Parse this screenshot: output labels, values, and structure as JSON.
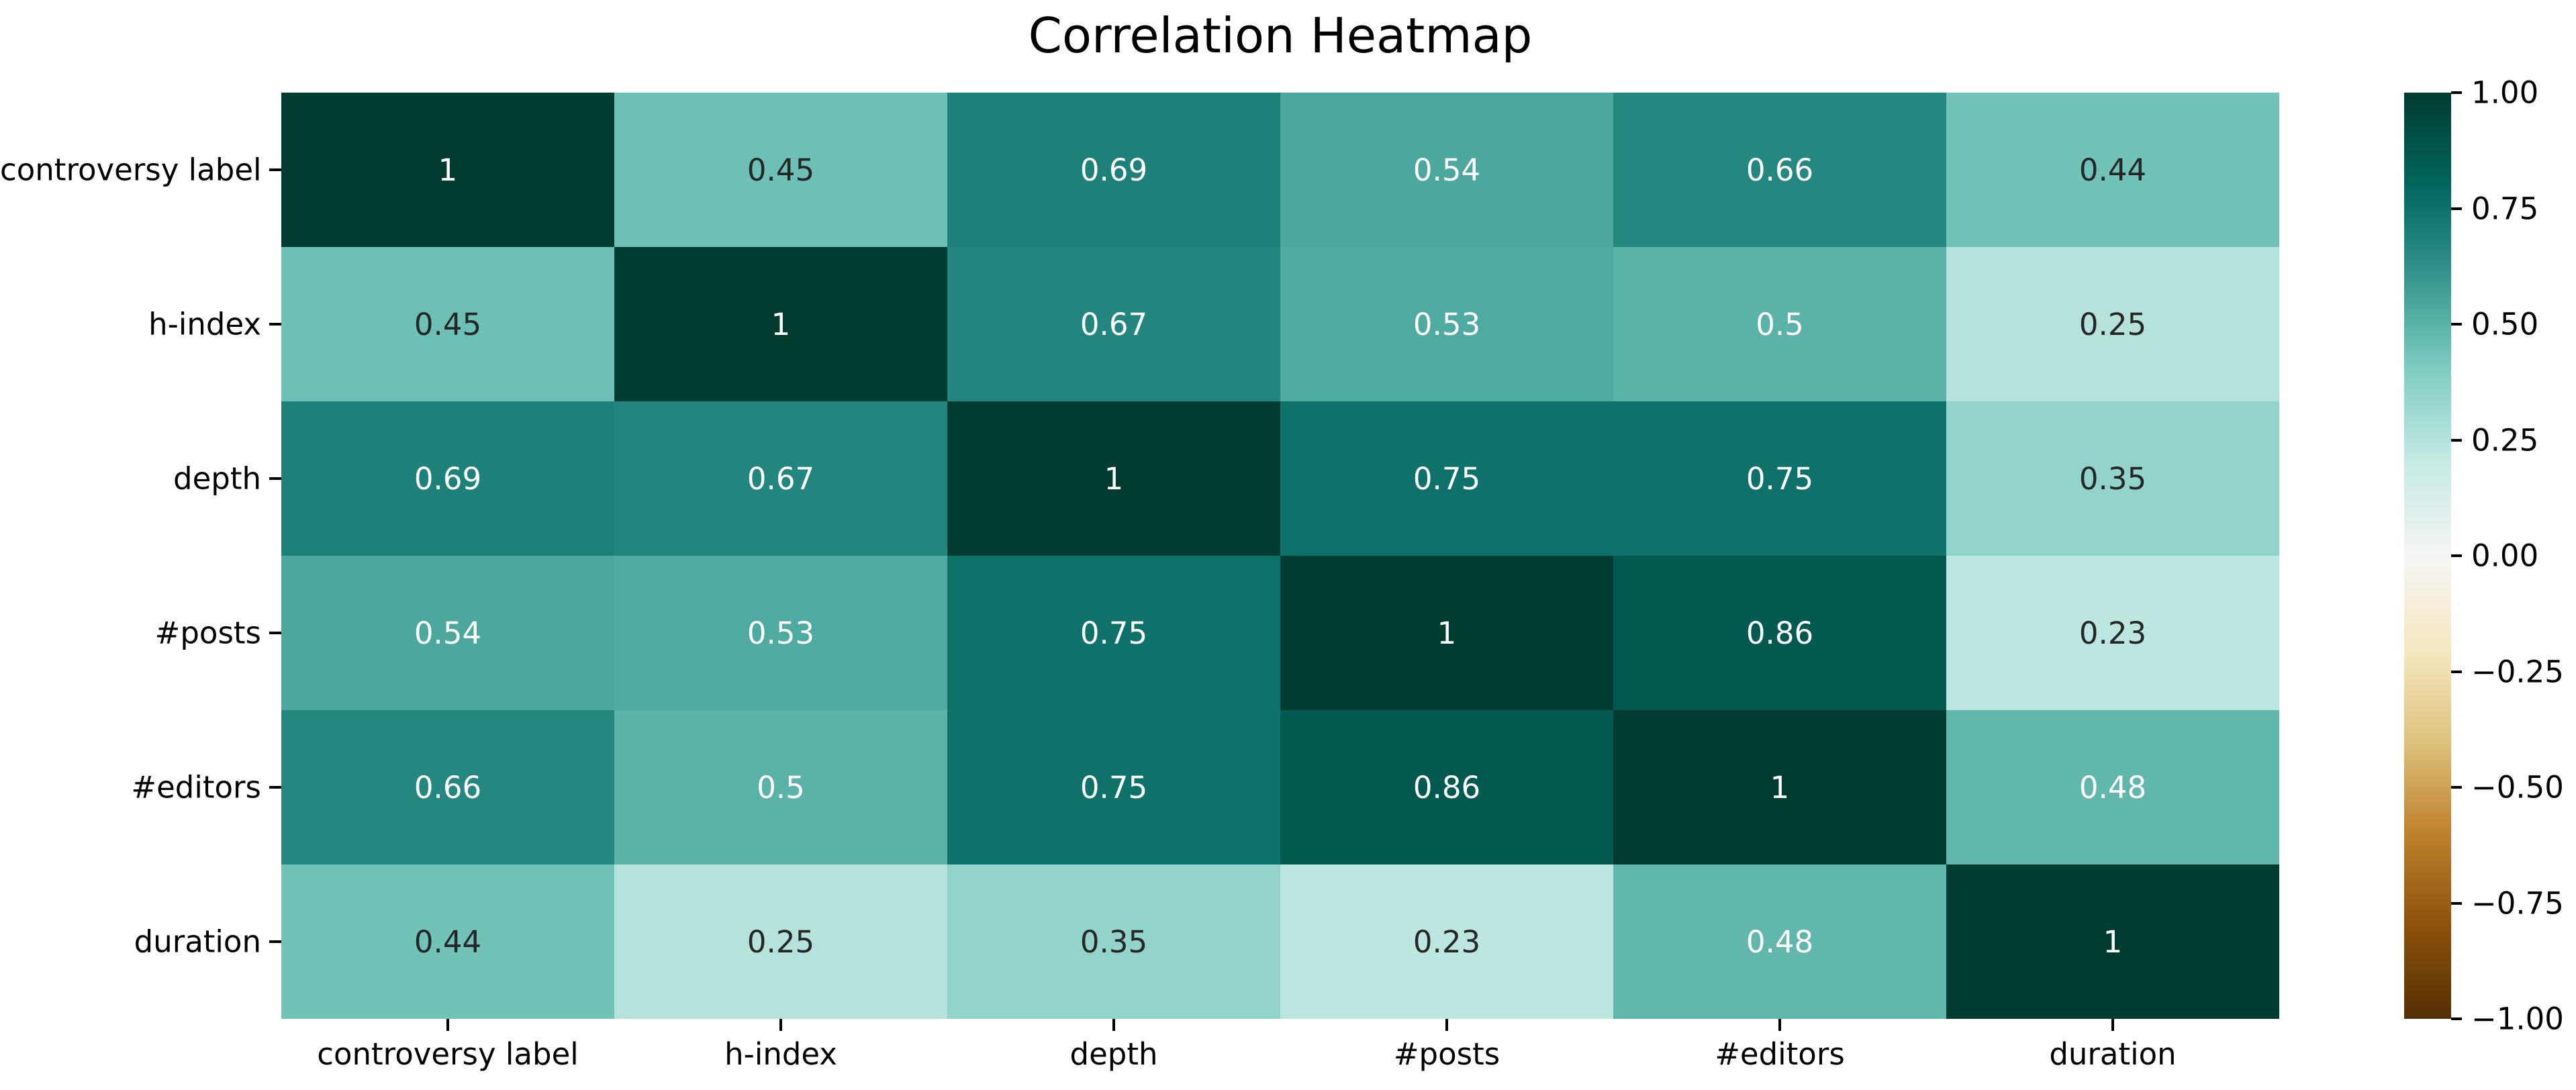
{
  "chart_data": {
    "type": "heatmap",
    "title": "Correlation Heatmap",
    "categories": [
      "controversy label",
      "h-index",
      "depth",
      "#posts",
      "#editors",
      "duration"
    ],
    "x_tick_labels": [
      "controversy label",
      "h-index",
      "depth",
      "#posts",
      "#editors",
      "duration"
    ],
    "y_tick_labels": [
      "controversy label",
      "h-index",
      "depth",
      "#posts",
      "#editors",
      "duration"
    ],
    "matrix": [
      [
        1,
        0.45,
        0.69,
        0.54,
        0.66,
        0.44
      ],
      [
        0.45,
        1,
        0.67,
        0.53,
        0.5,
        0.25
      ],
      [
        0.69,
        0.67,
        1,
        0.75,
        0.75,
        0.35
      ],
      [
        0.54,
        0.53,
        0.75,
        1,
        0.86,
        0.23
      ],
      [
        0.66,
        0.5,
        0.75,
        0.86,
        1,
        0.48
      ],
      [
        0.44,
        0.25,
        0.35,
        0.23,
        0.48,
        1
      ]
    ],
    "cell_labels": [
      [
        "1",
        "0.45",
        "0.69",
        "0.54",
        "0.66",
        "0.44"
      ],
      [
        "0.45",
        "1",
        "0.67",
        "0.53",
        "0.5",
        "0.25"
      ],
      [
        "0.69",
        "0.67",
        "1",
        "0.75",
        "0.75",
        "0.35"
      ],
      [
        "0.54",
        "0.53",
        "0.75",
        "1",
        "0.86",
        "0.23"
      ],
      [
        "0.66",
        "0.5",
        "0.75",
        "0.86",
        "1",
        "0.48"
      ],
      [
        "0.44",
        "0.25",
        "0.35",
        "0.23",
        "0.48",
        "1"
      ]
    ],
    "cell_colors": [
      [
        "#003c30",
        "#6dc0b5",
        "#1e8179",
        "#4ca79e",
        "#258880",
        "#71c2b7"
      ],
      [
        "#6dc0b5",
        "#003c30",
        "#23867e",
        "#4faaa1",
        "#5bb2a8",
        "#b5e3dc"
      ],
      [
        "#1e8179",
        "#23867e",
        "#003c30",
        "#0e726a",
        "#0e726a",
        "#92d4ca"
      ],
      [
        "#4ca79e",
        "#4faaa1",
        "#0e726a",
        "#003c30",
        "#015950",
        "#bce6e0"
      ],
      [
        "#258880",
        "#5bb2a8",
        "#0e726a",
        "#015950",
        "#003c30",
        "#62b7ad"
      ],
      [
        "#71c2b7",
        "#b5e3dc",
        "#92d4ca",
        "#bce6e0",
        "#62b7ad",
        "#003c30"
      ]
    ],
    "cell_text_colors": [
      [
        "#ffffff",
        "#262626",
        "#ffffff",
        "#ffffff",
        "#ffffff",
        "#262626"
      ],
      [
        "#262626",
        "#ffffff",
        "#ffffff",
        "#ffffff",
        "#ffffff",
        "#262626"
      ],
      [
        "#ffffff",
        "#ffffff",
        "#ffffff",
        "#ffffff",
        "#ffffff",
        "#262626"
      ],
      [
        "#ffffff",
        "#ffffff",
        "#ffffff",
        "#ffffff",
        "#ffffff",
        "#262626"
      ],
      [
        "#ffffff",
        "#ffffff",
        "#ffffff",
        "#ffffff",
        "#ffffff",
        "#ffffff"
      ],
      [
        "#262626",
        "#262626",
        "#262626",
        "#262626",
        "#ffffff",
        "#ffffff"
      ]
    ],
    "value_range": [
      -1,
      1
    ],
    "grid": false,
    "legend_position": "colorbar-right",
    "colorbar": {
      "tick_labels": [
        "1.00",
        "0.75",
        "0.50",
        "0.25",
        "0.00",
        "−0.25",
        "−0.50",
        "−0.75",
        "−1.00"
      ],
      "tick_values": [
        1.0,
        0.75,
        0.5,
        0.25,
        0.0,
        -0.25,
        -0.5,
        -0.75,
        -1.0
      ],
      "gradient_top_to_bottom": [
        "#003c30",
        "#01665e",
        "#35978f",
        "#80cdc1",
        "#c7eae5",
        "#f5f5f5",
        "#f6e8c3",
        "#dfc27d",
        "#bf812d",
        "#8c510a",
        "#543005"
      ]
    }
  }
}
